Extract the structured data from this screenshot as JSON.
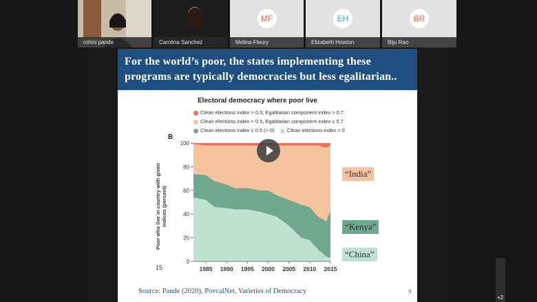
{
  "participants": [
    {
      "name": "rohini pande",
      "video": true
    },
    {
      "name": "Carolina Sanchez",
      "video": true
    },
    {
      "name": "Melina Fleury",
      "initials": "MF",
      "color": "#e8604a"
    },
    {
      "name": "Elizabeth Howton",
      "initials": "EH",
      "color": "#3aa5b8"
    },
    {
      "name": "Biju Rao",
      "initials": "BR",
      "color": "#e8604a"
    }
  ],
  "overflow_count": "+2",
  "slide": {
    "title": "For the world’s poor, the states implementing these programs are typically democracies but less egalitarian..",
    "chart_title": "Electoral democracy where poor live",
    "panel_label": "B",
    "stray_label": "15",
    "tags": [
      "“India”",
      "“Kenya”",
      "“China”"
    ],
    "source": "Source: Pande (2020), PovcalNet, Varieties of Democracy",
    "page_number": "9"
  },
  "colors": {
    "banner": "#1f4e80",
    "red": "#e8725e",
    "orange": "#f5c49e",
    "dark_green": "#6fa88e",
    "light_green": "#bfe1d2"
  },
  "chart_data": {
    "type": "area",
    "title": "Electoral democracy where poor live",
    "ylabel": "Poor who live in country with given indices (percent)",
    "ylim": [
      0,
      100
    ],
    "xlim": [
      1982,
      2015
    ],
    "yticks": [
      0,
      20,
      40,
      60,
      80,
      100
    ],
    "xticks": [
      1985,
      1990,
      1995,
      2000,
      2005,
      2010,
      2015
    ],
    "legend": [
      {
        "name": "Clean elections index > 0.5, Egalitarian component index > 0.7",
        "color": "#e8725e"
      },
      {
        "name": "Clean elections index > 0.5, Egalitarian component index ≤ 0.7",
        "color": "#f5c49e"
      },
      {
        "name": "Clean elections index ≤ 0.5 (> 0)",
        "color": "#6fa88e"
      },
      {
        "name": "Clean elections index = 0",
        "color": "#bfe1d2"
      }
    ],
    "x": [
      1982,
      1985,
      1987,
      1990,
      1992,
      1995,
      1998,
      2000,
      2002,
      2005,
      2008,
      2010,
      2012,
      2014,
      2015
    ],
    "series": [
      {
        "name": "Clean elections index = 0",
        "values": [
          54,
          52,
          46,
          45,
          44,
          44,
          42,
          40,
          38,
          30,
          20,
          18,
          10,
          4,
          3
        ]
      },
      {
        "name": "Clean elections index ≤ 0.5 (> 0)",
        "values": [
          20,
          21,
          22,
          20,
          18,
          18,
          18,
          20,
          18,
          22,
          28,
          28,
          28,
          30,
          40
        ]
      },
      {
        "name": "Clean elections index > 0.5, Egalitarian component index ≤ 0.7",
        "values": [
          25,
          25,
          30,
          33,
          36,
          36,
          38,
          38,
          42,
          46,
          50,
          52,
          60,
          62,
          55
        ]
      },
      {
        "name": "Clean elections index > 0.5, Egalitarian component index > 0.7",
        "values": [
          1,
          2,
          2,
          2,
          2,
          2,
          2,
          2,
          2,
          2,
          2,
          2,
          2,
          4,
          2
        ]
      }
    ]
  }
}
